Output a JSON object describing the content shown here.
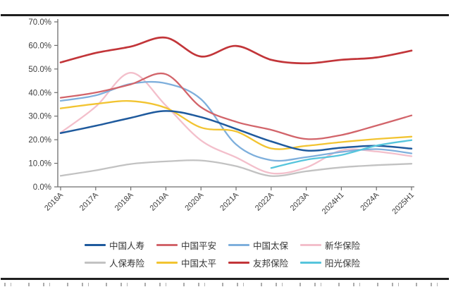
{
  "chart_data": {
    "type": "line",
    "title": "",
    "xlabel": "",
    "ylabel": "",
    "categories": [
      "2016A",
      "2017A",
      "2018A",
      "2019A",
      "2020A",
      "2021A",
      "2022A",
      "2023A",
      "2024H1",
      "2024A",
      "2025H1"
    ],
    "series": [
      {
        "name": "中国人寿",
        "color": "#1f5a9d",
        "values": [
          22.8,
          25.9,
          29.3,
          32.2,
          29.6,
          24.6,
          19.3,
          15.4,
          16.6,
          17.4,
          16.2
        ]
      },
      {
        "name": "中国平安",
        "color": "#d2646a",
        "values": [
          37.8,
          40.0,
          43.5,
          47.8,
          33.8,
          27.6,
          24.2,
          20.3,
          22.0,
          26.0,
          30.3
        ]
      },
      {
        "name": "中国太保",
        "color": "#7eafdc",
        "values": [
          36.5,
          38.8,
          43.7,
          43.9,
          37.2,
          18.0,
          11.3,
          12.6,
          14.8,
          16.0,
          14.2
        ]
      },
      {
        "name": "新华保险",
        "color": "#f3bfcb",
        "values": [
          23.0,
          34.0,
          48.4,
          34.5,
          19.7,
          12.5,
          5.8,
          8.2,
          15.5,
          15.0,
          13.0
        ]
      },
      {
        "name": "人保寿险",
        "color": "#c2c2c2",
        "values": [
          4.7,
          7.0,
          9.7,
          10.8,
          11.2,
          8.8,
          4.6,
          6.6,
          8.3,
          9.2,
          9.8
        ]
      },
      {
        "name": "中国太平",
        "color": "#f2c431",
        "values": [
          33.3,
          35.2,
          36.4,
          33.5,
          25.2,
          23.5,
          16.3,
          17.4,
          19.0,
          20.3,
          21.3
        ]
      },
      {
        "name": "友邦保险",
        "color": "#c23539",
        "values": [
          52.8,
          56.8,
          59.5,
          63.3,
          55.3,
          59.8,
          53.9,
          52.4,
          53.9,
          54.9,
          57.8
        ]
      },
      {
        "name": "阳光保险",
        "color": "#56c5dc",
        "values": [
          null,
          null,
          null,
          null,
          null,
          null,
          8.0,
          11.5,
          13.5,
          17.5,
          19.8
        ]
      }
    ],
    "ylim": [
      0,
      70
    ],
    "ytick_labels": [
      "0.0%",
      "10.0%",
      "20.0%",
      "30.0%",
      "40.0%",
      "50.0%",
      "60.0%",
      "70.0%"
    ],
    "grid": false,
    "legend_position": "bottom",
    "axis_color": "#6e6e6e",
    "text_color": "#3f3f3f"
  }
}
